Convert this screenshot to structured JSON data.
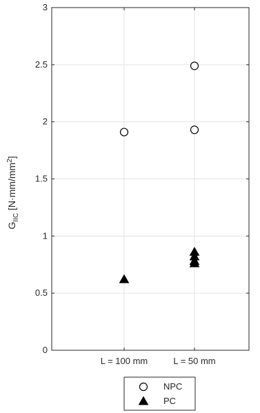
{
  "chart_data": {
    "type": "scatter",
    "categories": [
      "L = 100 mm",
      "L = 50 mm"
    ],
    "ylabel": {
      "main": "G",
      "subscript": "IIC",
      "unit_prefix": " [N·mm/mm",
      "unit_sup": "2",
      "unit_suffix": "]"
    },
    "ylim": [
      0,
      3
    ],
    "yticks": [
      0,
      0.5,
      1,
      1.5,
      2,
      2.5,
      3
    ],
    "ytick_labels": [
      "0",
      "0.5",
      "1",
      "1.5",
      "2",
      "2.5",
      "3"
    ],
    "grid": true,
    "legend_position": "below",
    "series": [
      {
        "name": "NPC",
        "marker": "open-circle",
        "color": "#000000",
        "points": [
          {
            "category": "L = 100 mm",
            "y": 1.91
          },
          {
            "category": "L = 50 mm",
            "y": 2.49
          },
          {
            "category": "L = 50 mm",
            "y": 1.93
          }
        ]
      },
      {
        "name": "PC",
        "marker": "filled-triangle",
        "color": "#000000",
        "points": [
          {
            "category": "L = 100 mm",
            "y": 0.62
          },
          {
            "category": "L = 50 mm",
            "y": 0.86
          },
          {
            "category": "L = 50 mm",
            "y": 0.82
          },
          {
            "category": "L = 50 mm",
            "y": 0.78
          },
          {
            "category": "L = 50 mm",
            "y": 0.76
          }
        ]
      }
    ]
  }
}
